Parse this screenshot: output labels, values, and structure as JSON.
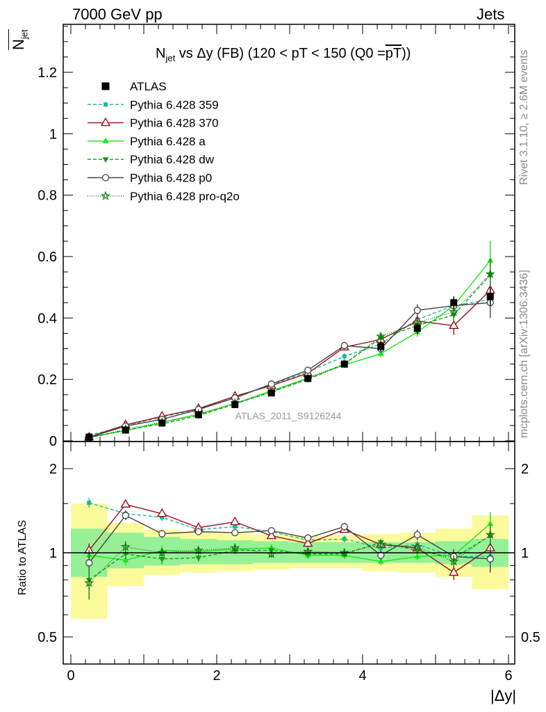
{
  "header": {
    "left": "7000 GeV pp",
    "right": "Jets"
  },
  "title": {
    "main": "N",
    "sub": "jet",
    "rest": " vs Δy (FB) (120 < pT < 150 (Q0 =",
    "pt": "pT",
    "close": "))"
  },
  "ylabel": {
    "main": "N",
    "sub": "jet"
  },
  "side_top": "Rivet 3.1.10, ≥ 2.6M events",
  "side_bottom": "mcplots.cern.ch [arXiv:1306.3436]",
  "watermark": "ATLAS_2011_S9126244",
  "ratio_label": "Ratio to ATLAS",
  "xlabel": "|Δy|",
  "chart_data": [
    {
      "type": "line",
      "panel": "main",
      "ylim": [
        0,
        1.35
      ],
      "xlim": [
        -0.1,
        6.05
      ],
      "xticks": [
        "0",
        "2",
        "4",
        "6"
      ],
      "yticks": [
        "0",
        "0.2",
        "0.4",
        "0.6",
        "0.8",
        "1",
        "1.2"
      ],
      "x": [
        0.25,
        0.75,
        1.25,
        1.75,
        2.25,
        2.75,
        3.25,
        3.75,
        4.25,
        4.75,
        5.25,
        5.75
      ],
      "series": [
        {
          "name": "ATLAS",
          "color": "#000000",
          "marker": "square",
          "dash": "none",
          "values": [
            0.012,
            0.035,
            0.058,
            0.085,
            0.118,
            0.156,
            0.203,
            0.25,
            0.307,
            0.366,
            0.45,
            0.47
          ],
          "errors": [
            0.002,
            0.003,
            0.004,
            0.005,
            0.006,
            0.008,
            0.009,
            0.012,
            0.015,
            0.018,
            0.02,
            0.03
          ]
        },
        {
          "name": "Pythia 6.428 359",
          "color": "#1ab99b",
          "marker": "smallsquare",
          "dash": "5,3",
          "values": [
            0.018,
            0.048,
            0.078,
            0.103,
            0.14,
            0.183,
            0.225,
            0.275,
            0.315,
            0.395,
            0.44,
            0.46
          ],
          "errors": [
            0.002,
            0.003,
            0.004,
            0.005,
            0.006,
            0.007,
            0.008,
            0.01,
            0.012,
            0.015,
            0.02,
            0.03
          ]
        },
        {
          "name": "Pythia 6.428 370",
          "color": "#9b0f1e",
          "marker": "opentriangle",
          "dash": "none",
          "values": [
            0.012,
            0.052,
            0.08,
            0.105,
            0.145,
            0.18,
            0.22,
            0.305,
            0.33,
            0.39,
            0.375,
            0.49
          ],
          "errors": [
            0.002,
            0.003,
            0.004,
            0.005,
            0.006,
            0.007,
            0.008,
            0.01,
            0.012,
            0.015,
            0.03,
            0.04
          ]
        },
        {
          "name": "Pythia 6.428 a",
          "color": "#18e818",
          "marker": "triangle",
          "dash": "none",
          "values": [
            0.012,
            0.033,
            0.06,
            0.086,
            0.121,
            0.163,
            0.204,
            0.247,
            0.284,
            0.354,
            0.44,
            0.587
          ],
          "errors": [
            0.002,
            0.003,
            0.004,
            0.005,
            0.006,
            0.007,
            0.008,
            0.01,
            0.012,
            0.015,
            0.02,
            0.065
          ]
        },
        {
          "name": "Pythia 6.428 dw",
          "color": "#14a014",
          "marker": "downtriangle",
          "dash": "5,3",
          "values": [
            0.01,
            0.035,
            0.055,
            0.082,
            0.12,
            0.16,
            0.2,
            0.25,
            0.335,
            0.375,
            0.41,
            0.54
          ],
          "errors": [
            0.002,
            0.003,
            0.004,
            0.005,
            0.006,
            0.007,
            0.008,
            0.01,
            0.012,
            0.015,
            0.02,
            0.04
          ]
        },
        {
          "name": "Pythia 6.428 p0",
          "color": "#444444",
          "marker": "opencircle",
          "dash": "none",
          "values": [
            0.011,
            0.048,
            0.07,
            0.102,
            0.14,
            0.185,
            0.23,
            0.31,
            0.3,
            0.425,
            0.44,
            0.45
          ],
          "errors": [
            0.002,
            0.003,
            0.004,
            0.005,
            0.006,
            0.007,
            0.008,
            0.01,
            0.012,
            0.02,
            0.03,
            0.05
          ]
        },
        {
          "name": "Pythia 6.428 pro-q2o",
          "color": "#1a7a1a",
          "marker": "openstar",
          "dash": "1,2",
          "values": [
            0.009,
            0.038,
            0.061,
            0.087,
            0.123,
            0.157,
            0.205,
            0.25,
            0.34,
            0.385,
            0.42,
            0.543
          ],
          "errors": [
            0.002,
            0.003,
            0.004,
            0.005,
            0.006,
            0.007,
            0.008,
            0.01,
            0.012,
            0.015,
            0.02,
            0.05
          ]
        }
      ]
    },
    {
      "type": "line",
      "panel": "ratio",
      "ylabel": "Ratio to ATLAS",
      "ylim": [
        0.34,
        2.35
      ],
      "yscale": "log",
      "yticks": [
        "0.5",
        "1",
        "2"
      ],
      "x": [
        0.25,
        0.75,
        1.25,
        1.75,
        2.25,
        2.75,
        3.25,
        3.75,
        4.25,
        4.75,
        5.25,
        5.75
      ],
      "band_inner": [
        [
          0.82,
          1.22
        ],
        [
          0.88,
          1.18
        ],
        [
          0.9,
          1.14
        ],
        [
          0.91,
          1.12
        ],
        [
          0.91,
          1.11
        ],
        [
          0.92,
          1.1
        ],
        [
          0.92,
          1.09
        ],
        [
          0.92,
          1.09
        ],
        [
          0.92,
          1.09
        ],
        [
          0.92,
          1.09
        ],
        [
          0.91,
          1.1
        ],
        [
          0.89,
          1.12
        ]
      ],
      "band_outer": [
        [
          0.58,
          1.5
        ],
        [
          0.76,
          1.28
        ],
        [
          0.83,
          1.21
        ],
        [
          0.85,
          1.19
        ],
        [
          0.86,
          1.18
        ],
        [
          0.87,
          1.16
        ],
        [
          0.88,
          1.15
        ],
        [
          0.88,
          1.16
        ],
        [
          0.86,
          1.17
        ],
        [
          0.85,
          1.18
        ],
        [
          0.82,
          1.22
        ],
        [
          0.74,
          1.36
        ]
      ],
      "series": [
        {
          "name": "Pythia 6.428 359",
          "values": [
            1.51,
            1.38,
            1.34,
            1.21,
            1.24,
            1.19,
            1.11,
            1.12,
            1.04,
            1.07,
            0.97,
            0.97
          ],
          "errors": [
            0.06,
            0.04,
            0.04,
            0.03,
            0.03,
            0.03,
            0.03,
            0.03,
            0.03,
            0.03,
            0.03,
            0.05
          ]
        },
        {
          "name": "Pythia 6.428 370",
          "values": [
            1.02,
            1.49,
            1.38,
            1.23,
            1.29,
            1.15,
            1.08,
            1.21,
            1.07,
            1.04,
            0.85,
            1.04
          ],
          "errors": [
            0.06,
            0.04,
            0.04,
            0.03,
            0.03,
            0.03,
            0.03,
            0.03,
            0.03,
            0.03,
            0.05,
            0.06
          ]
        },
        {
          "name": "Pythia 6.428 a",
          "values": [
            0.98,
            0.94,
            1.02,
            1.01,
            1.03,
            1.04,
            0.98,
            0.98,
            0.93,
            0.97,
            0.98,
            1.27
          ],
          "errors": [
            0.05,
            0.04,
            0.04,
            0.03,
            0.03,
            0.03,
            0.03,
            0.03,
            0.03,
            0.03,
            0.04,
            0.13
          ]
        },
        {
          "name": "Pythia 6.428 dw",
          "values": [
            0.8,
            0.99,
            0.95,
            0.96,
            1.02,
            1.02,
            0.99,
            0.99,
            1.09,
            1.02,
            0.96,
            1.15
          ],
          "errors": [
            0.06,
            0.04,
            0.04,
            0.03,
            0.03,
            0.03,
            0.03,
            0.03,
            0.03,
            0.03,
            0.04,
            0.09
          ]
        },
        {
          "name": "Pythia 6.428 p0",
          "values": [
            0.92,
            1.36,
            1.17,
            1.19,
            1.18,
            1.2,
            1.13,
            1.24,
            0.98,
            1.16,
            0.97,
            0.95
          ],
          "errors": [
            0.1,
            0.05,
            0.04,
            0.03,
            0.03,
            0.03,
            0.03,
            0.04,
            0.04,
            0.05,
            0.06,
            0.1
          ]
        },
        {
          "name": "Pythia 6.428 pro-q2o",
          "values": [
            0.78,
            1.05,
            1.0,
            1.02,
            1.04,
            0.99,
            1.01,
            1.0,
            1.07,
            1.05,
            0.93,
            1.16
          ],
          "errors": [
            0.1,
            0.05,
            0.04,
            0.03,
            0.03,
            0.03,
            0.03,
            0.03,
            0.03,
            0.03,
            0.05,
            0.1
          ]
        }
      ]
    }
  ]
}
